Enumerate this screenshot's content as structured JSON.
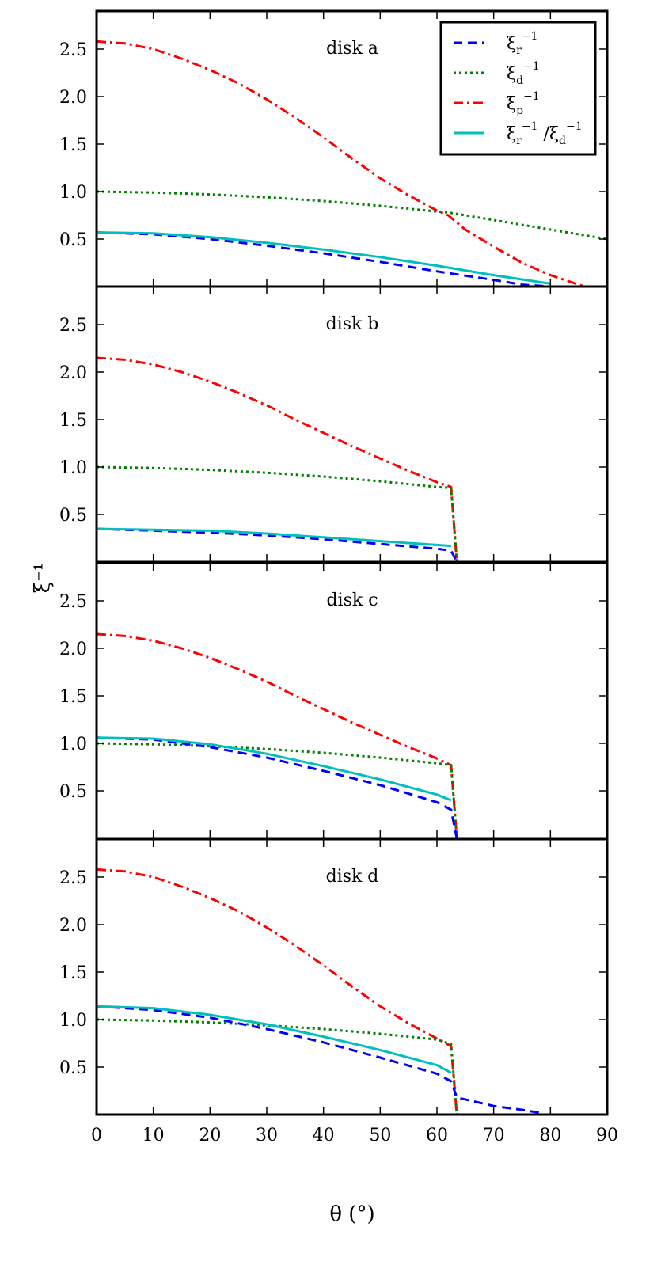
{
  "chart_data": {
    "type": "line",
    "figure_layout": "4 vertically stacked panels with shared x-axis",
    "xlabel": "θ (°)",
    "ylabel": "ξ⁻¹",
    "xlim": [
      0,
      90
    ],
    "ylim": [
      0,
      2.9
    ],
    "xticks": [
      0,
      10,
      20,
      30,
      40,
      50,
      60,
      70,
      80,
      90
    ],
    "yticks": [
      0.5,
      1.0,
      1.5,
      2.0,
      2.5
    ],
    "xtick_labels": [
      "0",
      "10",
      "20",
      "30",
      "40",
      "50",
      "60",
      "70",
      "80",
      "90"
    ],
    "ytick_labels": [
      "0.5",
      "1.0",
      "1.5",
      "2.0",
      "2.5"
    ],
    "grid": false,
    "legend": {
      "placement": "top-right of first panel",
      "entries": [
        {
          "key": "xi_r",
          "base": "ξ",
          "sub": "r",
          "sup": "−1",
          "color": "#0000ff",
          "style": "dashed"
        },
        {
          "key": "xi_d",
          "base": "ξ",
          "sub": "d",
          "sup": "−1",
          "color": "#008000",
          "style": "dotted"
        },
        {
          "key": "xi_p",
          "base": "ξ",
          "sub": "p",
          "sup": "−1",
          "color": "#ff0000",
          "style": "dashdot"
        },
        {
          "key": "ratio",
          "base": "ξ",
          "sub": "r",
          "sup": "−1",
          "sep": "/",
          "base2": "ξ",
          "sub2": "d",
          "sup2": "−1",
          "color": "#00bfbf",
          "style": "solid"
        }
      ]
    },
    "panels": [
      {
        "title": "disk a",
        "series": [
          {
            "key": "xi_p",
            "x": [
              0,
              5,
              10,
              15,
              20,
              25,
              30,
              35,
              40,
              45,
              50,
              55,
              60,
              62,
              65,
              70,
              75,
              80,
              85,
              86
            ],
            "y": [
              2.58,
              2.56,
              2.5,
              2.4,
              2.28,
              2.14,
              1.97,
              1.78,
              1.57,
              1.35,
              1.14,
              0.96,
              0.8,
              0.75,
              0.6,
              0.42,
              0.25,
              0.12,
              0.02,
              0
            ]
          },
          {
            "key": "xi_d",
            "x": [
              0,
              10,
              20,
              30,
              40,
              50,
              60,
              62,
              70,
              80,
              90
            ],
            "y": [
              1.0,
              0.99,
              0.97,
              0.94,
              0.9,
              0.85,
              0.79,
              0.78,
              0.7,
              0.6,
              0.5
            ]
          },
          {
            "key": "xi_r",
            "x": [
              0,
              10,
              20,
              30,
              40,
              50,
              60,
              70,
              75,
              80
            ],
            "y": [
              0.57,
              0.55,
              0.5,
              0.43,
              0.35,
              0.26,
              0.16,
              0.07,
              0.02,
              0
            ]
          },
          {
            "key": "ratio",
            "x": [
              0,
              10,
              20,
              30,
              40,
              50,
              60,
              70,
              80
            ],
            "y": [
              0.57,
              0.56,
              0.52,
              0.46,
              0.39,
              0.31,
              0.22,
              0.12,
              0.03
            ]
          }
        ]
      },
      {
        "title": "disk b",
        "series": [
          {
            "key": "xi_p",
            "x": [
              0,
              5,
              10,
              15,
              20,
              25,
              30,
              35,
              40,
              45,
              50,
              55,
              60,
              62.5,
              63.5
            ],
            "y": [
              2.15,
              2.13,
              2.08,
              2.0,
              1.9,
              1.78,
              1.65,
              1.5,
              1.36,
              1.22,
              1.09,
              0.96,
              0.84,
              0.79,
              0
            ]
          },
          {
            "key": "xi_d",
            "x": [
              0,
              10,
              20,
              30,
              40,
              50,
              60,
              62.5,
              63.5
            ],
            "y": [
              1.0,
              0.99,
              0.97,
              0.94,
              0.9,
              0.85,
              0.79,
              0.78,
              0
            ]
          },
          {
            "key": "xi_r",
            "x": [
              0,
              10,
              20,
              30,
              40,
              50,
              60,
              62.5,
              63.5
            ],
            "y": [
              0.35,
              0.33,
              0.31,
              0.28,
              0.24,
              0.19,
              0.14,
              0.12,
              0
            ]
          },
          {
            "key": "ratio",
            "x": [
              0,
              10,
              20,
              30,
              40,
              50,
              60,
              62.5
            ],
            "y": [
              0.35,
              0.34,
              0.33,
              0.3,
              0.26,
              0.22,
              0.18,
              0.17
            ]
          }
        ]
      },
      {
        "title": "disk c",
        "series": [
          {
            "key": "xi_p",
            "x": [
              0,
              5,
              10,
              15,
              20,
              25,
              30,
              35,
              40,
              45,
              50,
              55,
              60,
              62.5,
              63.5
            ],
            "y": [
              2.15,
              2.13,
              2.08,
              2.0,
              1.9,
              1.78,
              1.65,
              1.5,
              1.36,
              1.22,
              1.09,
              0.96,
              0.84,
              0.77,
              0
            ]
          },
          {
            "key": "xi_d",
            "x": [
              0,
              10,
              20,
              30,
              40,
              50,
              60,
              62.5,
              63.5
            ],
            "y": [
              1.0,
              0.99,
              0.97,
              0.94,
              0.9,
              0.85,
              0.79,
              0.77,
              0
            ]
          },
          {
            "key": "xi_r",
            "x": [
              0,
              10,
              20,
              30,
              40,
              50,
              60,
              62.5,
              63.5
            ],
            "y": [
              1.06,
              1.04,
              0.96,
              0.85,
              0.71,
              0.56,
              0.38,
              0.3,
              0
            ]
          },
          {
            "key": "ratio",
            "x": [
              0,
              10,
              20,
              30,
              40,
              50,
              60,
              62.5
            ],
            "y": [
              1.06,
              1.05,
              0.99,
              0.89,
              0.76,
              0.62,
              0.46,
              0.4
            ]
          }
        ]
      },
      {
        "title": "disk d",
        "series": [
          {
            "key": "xi_p",
            "x": [
              0,
              5,
              10,
              15,
              20,
              25,
              30,
              35,
              40,
              45,
              50,
              55,
              60,
              62.5,
              63.5
            ],
            "y": [
              2.58,
              2.56,
              2.5,
              2.4,
              2.28,
              2.14,
              1.97,
              1.78,
              1.57,
              1.35,
              1.14,
              0.96,
              0.8,
              0.72,
              0
            ]
          },
          {
            "key": "xi_d",
            "x": [
              0,
              10,
              20,
              30,
              40,
              50,
              60,
              62.5,
              63.5
            ],
            "y": [
              1.0,
              0.99,
              0.97,
              0.94,
              0.9,
              0.85,
              0.79,
              0.74,
              0
            ]
          },
          {
            "key": "xi_r",
            "x": [
              0,
              10,
              20,
              30,
              40,
              50,
              60,
              62.5,
              63.5,
              70,
              75,
              78
            ],
            "y": [
              1.14,
              1.1,
              1.02,
              0.9,
              0.76,
              0.6,
              0.43,
              0.35,
              0.18,
              0.09,
              0.05,
              0.02
            ]
          },
          {
            "key": "ratio",
            "x": [
              0,
              10,
              20,
              30,
              40,
              50,
              60,
              62.5
            ],
            "y": [
              1.14,
              1.12,
              1.05,
              0.95,
              0.82,
              0.68,
              0.52,
              0.44
            ]
          }
        ]
      }
    ]
  }
}
